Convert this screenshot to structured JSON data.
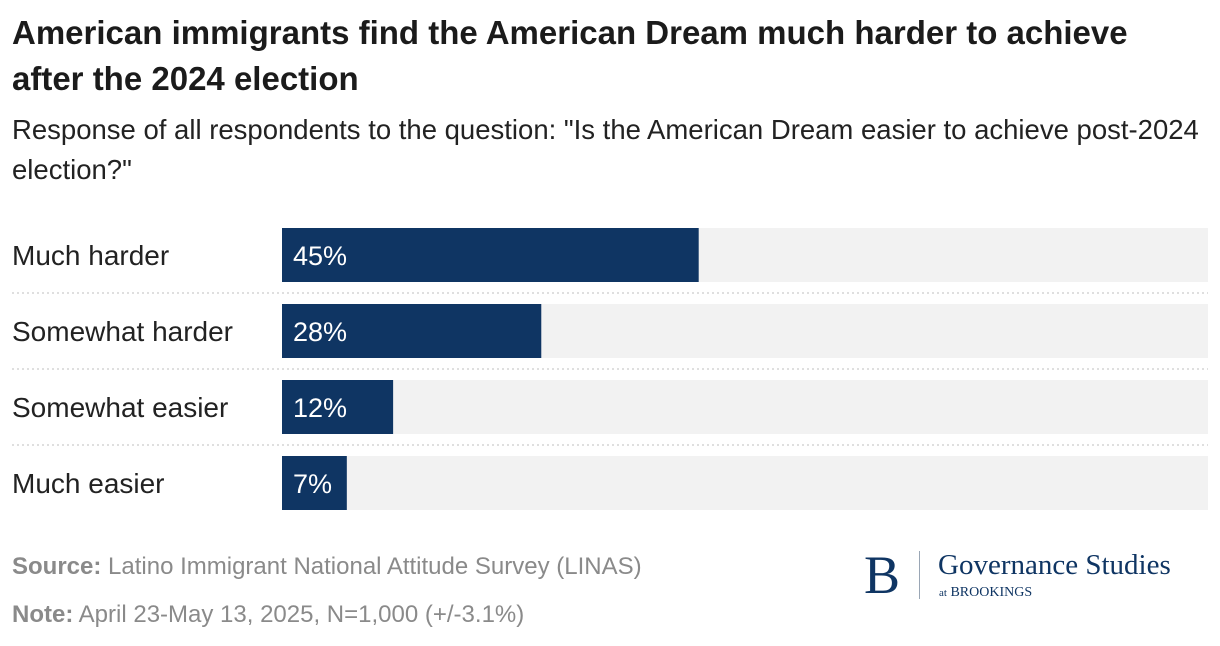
{
  "chart_data": {
    "type": "bar",
    "orientation": "horizontal",
    "title": "American immigrants find the American Dream much harder to achieve after the 2024 election",
    "subtitle": "Response of all respondents to the question: \"Is the American Dream easier to achieve post-2024 election?\"",
    "categories": [
      "Much harder",
      "Somewhat harder",
      "Somewhat easier",
      "Much easier"
    ],
    "values": [
      45,
      28,
      12,
      7
    ],
    "value_labels": [
      "45%",
      "28%",
      "12%",
      "7%"
    ],
    "xlim": [
      0,
      100
    ],
    "xlabel": "",
    "ylabel": "",
    "grid": false,
    "colors": {
      "bar": "#0f3563",
      "track": "#f2f2f2",
      "label_text": "#ffffff",
      "separator": "#cccccc"
    }
  },
  "footer": {
    "source_label": "Source:",
    "source_text": " Latino Immigrant National Attitude Survey (LINAS)",
    "note_label": "Note:",
    "note_text": " April 23-May 13, 2025, N=1,000 (+/-3.1%)"
  },
  "logo": {
    "mark": "B",
    "name": "Governance Studies",
    "sub_at": "at",
    "sub_org": "BROOKINGS",
    "color": "#0f3563"
  }
}
